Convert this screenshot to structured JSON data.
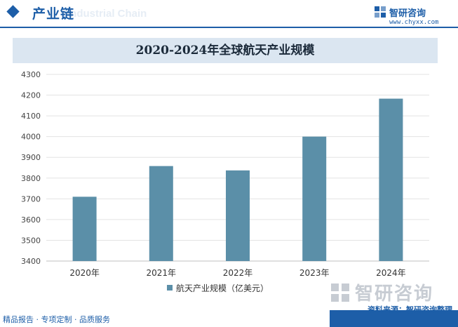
{
  "header": {
    "title": "产业链",
    "ghost_text": "Industrial Chain",
    "accent_color": "#1d5ea8"
  },
  "brand": {
    "name": "智研咨询",
    "url": "www.chyxx.com"
  },
  "watermark": {
    "text": "智研咨询"
  },
  "chart_data": {
    "type": "bar",
    "title": "2020-2024年全球航天产业规模",
    "categories": [
      "2020年",
      "2021年",
      "2022年",
      "2023年",
      "2024年"
    ],
    "series": [
      {
        "name": "航天产业规模（亿美元）",
        "values": [
          3710,
          3858,
          3837,
          4000,
          4183
        ],
        "color": "#5b8fa8"
      }
    ],
    "ylim": [
      3400,
      4300
    ],
    "yticks": [
      3400,
      3500,
      3600,
      3700,
      3800,
      3900,
      4000,
      4100,
      4200,
      4300
    ],
    "grid": true,
    "legend_position": "bottom"
  },
  "footer": {
    "left": "精品报告 · 专项定制 · 品质服务",
    "source": "资料来源：智研咨询整理"
  }
}
